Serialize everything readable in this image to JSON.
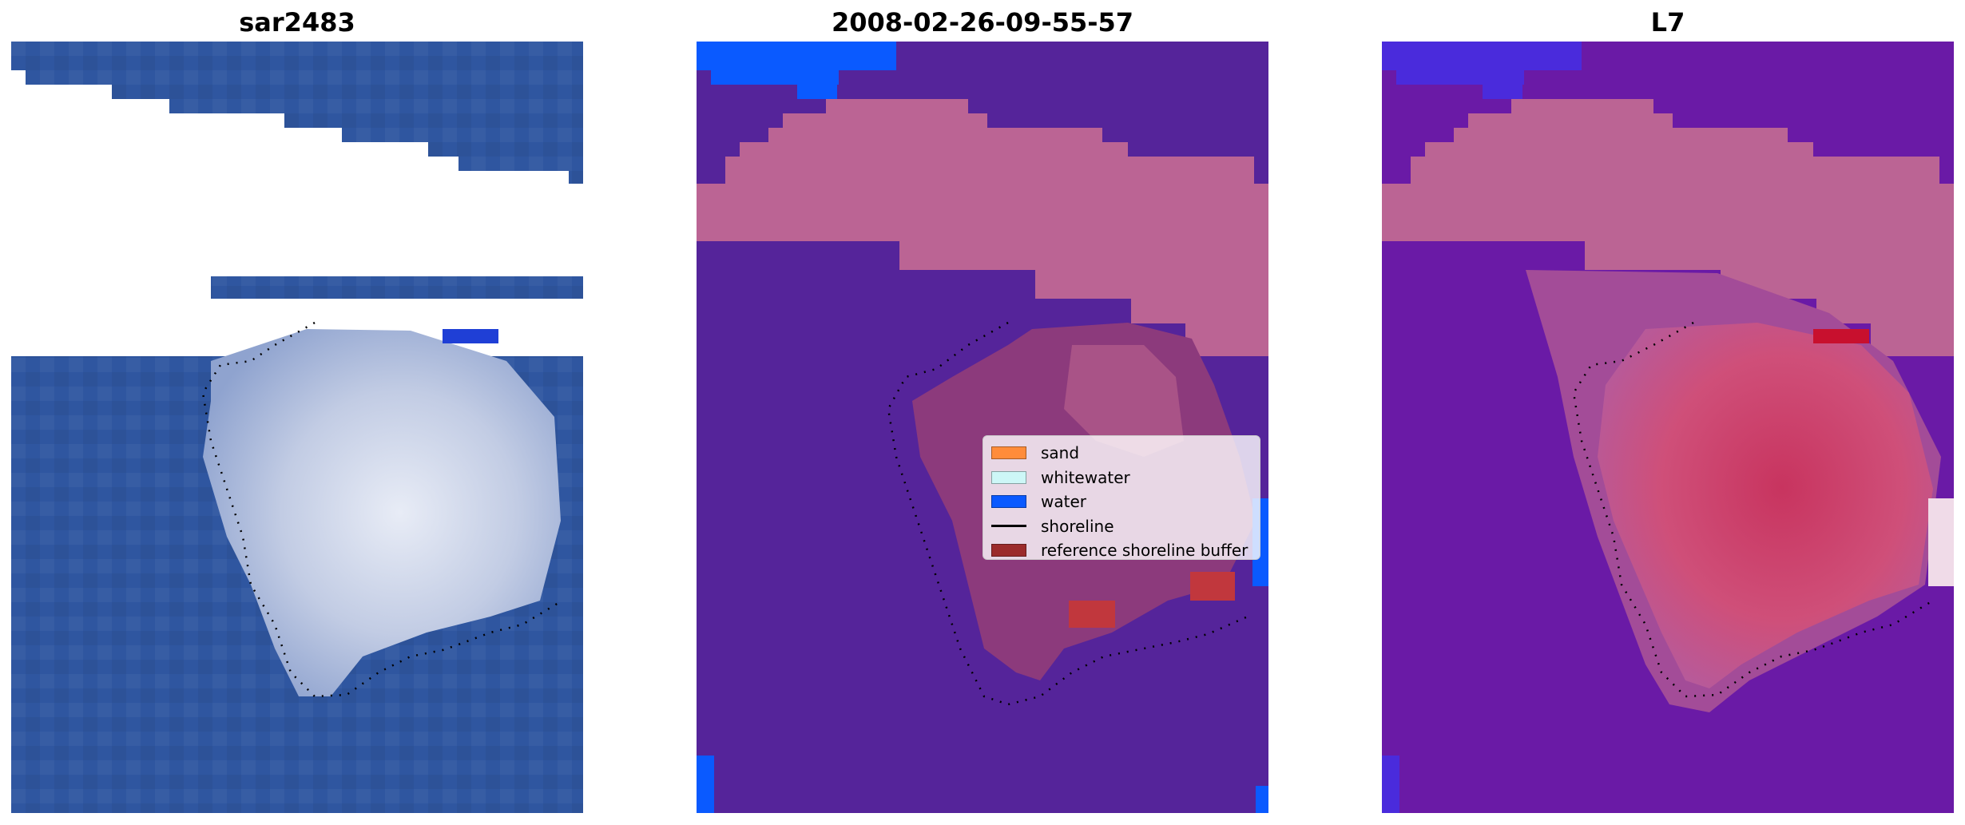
{
  "panels": [
    {
      "title": "sar2483"
    },
    {
      "title": "2008-02-26-09-55-57"
    },
    {
      "title": "L7"
    }
  ],
  "legend": {
    "items": [
      {
        "label": "sand",
        "color": "#ff8c3a",
        "kind": "patch"
      },
      {
        "label": "whitewater",
        "color": "#cdf7f7",
        "kind": "patch"
      },
      {
        "label": "water",
        "color": "#0a5aff",
        "kind": "patch"
      },
      {
        "label": "shoreline",
        "color": "#000000",
        "kind": "line"
      },
      {
        "label": "reference shoreline buffer",
        "color": "#9b2b2b",
        "kind": "patch"
      }
    ]
  },
  "colors": {
    "sea_rgb": "#2f56a0",
    "reef_rgb": "#d6dcec",
    "class_background": "#55249a",
    "class_buffer": "#bb6494",
    "class_water": "#0a5aff",
    "class_buffer_dark": "#8c3a7c",
    "class_red": "#c1373d",
    "mndwi_background": "#6a1aa6",
    "mndwi_reef": "#c9436b"
  }
}
